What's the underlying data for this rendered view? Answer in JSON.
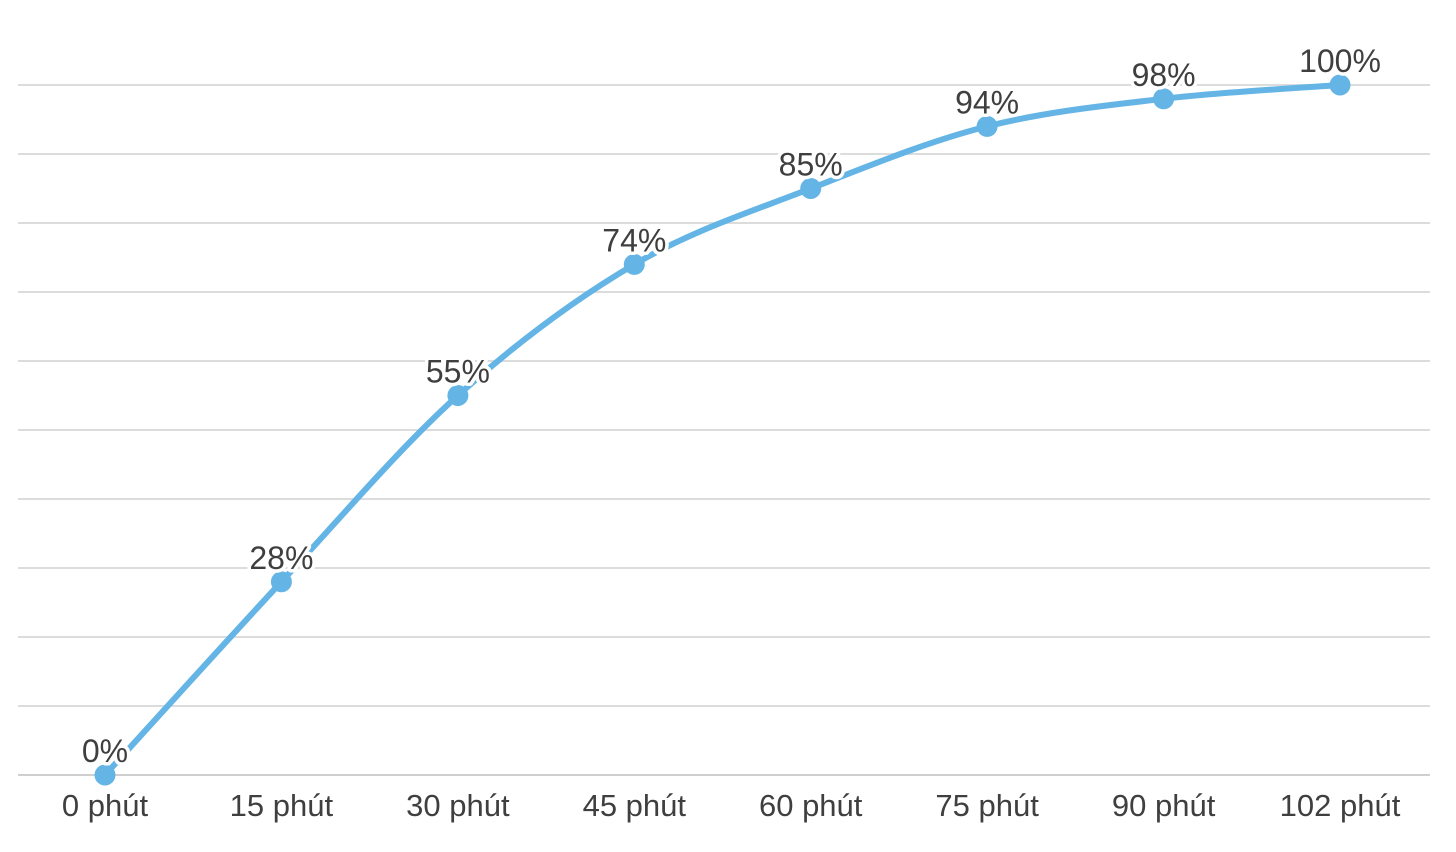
{
  "chart_data": {
    "type": "line",
    "title": "",
    "categories": [
      "0 phút",
      "15 phút",
      "30 phút",
      "45 phút",
      "60 phút",
      "75 phút",
      "90 phút",
      "102 phút"
    ],
    "x_minutes": [
      0,
      15,
      30,
      45,
      60,
      75,
      90,
      102
    ],
    "values": [
      0,
      28,
      55,
      74,
      85,
      94,
      98,
      100
    ],
    "point_labels": [
      "0%",
      "28%",
      "55%",
      "74%",
      "85%",
      "94%",
      "98%",
      "100%"
    ],
    "xlabel": "",
    "ylabel": "",
    "ylim": [
      0,
      100
    ],
    "grid_step": 10,
    "grid": "horizontal-only",
    "legend": "none",
    "curve": "smooth",
    "colors": {
      "line": "#64b5e6",
      "point": "#64b5e6",
      "gridline": "#dcdcdc",
      "axis_line": "#cfcfcf",
      "label_text": "#3f3f3f",
      "background": "#ffffff"
    }
  }
}
